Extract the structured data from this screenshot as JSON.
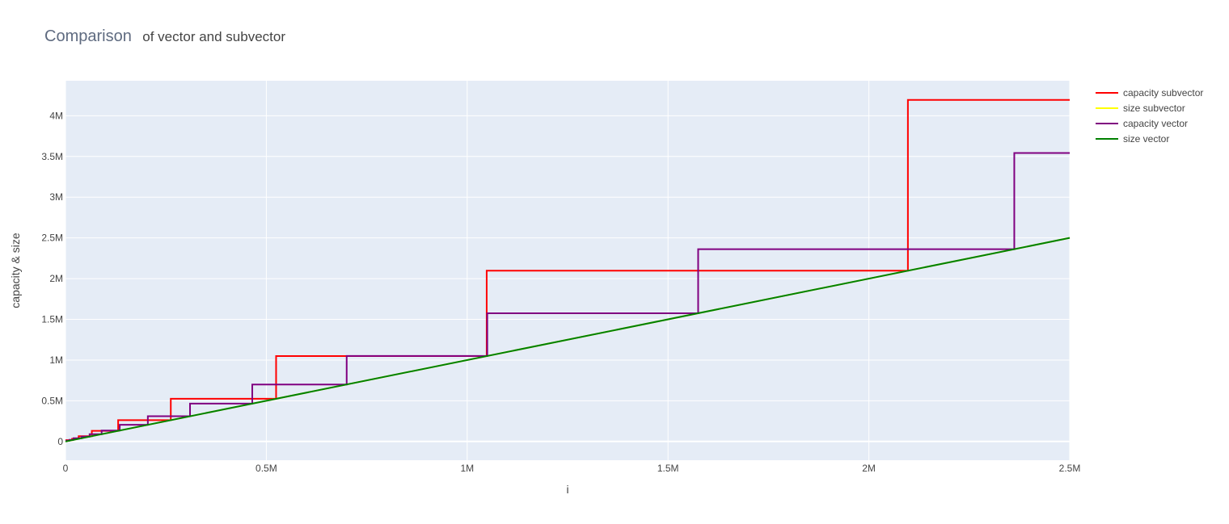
{
  "chart_data": {
    "type": "line",
    "title": "Comparison",
    "subtitle": "of vector and subvector",
    "xlabel": "i",
    "ylabel": "capacity & size",
    "xlim": [
      0,
      2500000
    ],
    "ylim": [
      -230000,
      4430000
    ],
    "x_ticks": [
      {
        "value": 0,
        "label": "0"
      },
      {
        "value": 500000,
        "label": "0.5M"
      },
      {
        "value": 1000000,
        "label": "1M"
      },
      {
        "value": 1500000,
        "label": "1.5M"
      },
      {
        "value": 2000000,
        "label": "2M"
      },
      {
        "value": 2500000,
        "label": "2.5M"
      }
    ],
    "y_ticks": [
      {
        "value": 0,
        "label": "0"
      },
      {
        "value": 500000,
        "label": "0.5M"
      },
      {
        "value": 1000000,
        "label": "1M"
      },
      {
        "value": 1500000,
        "label": "1.5M"
      },
      {
        "value": 2000000,
        "label": "2M"
      },
      {
        "value": 2500000,
        "label": "2.5M"
      },
      {
        "value": 3000000,
        "label": "3M"
      },
      {
        "value": 3500000,
        "label": "3.5M"
      },
      {
        "value": 4000000,
        "label": "4M"
      }
    ],
    "grid": true,
    "legend_position": "top-right",
    "series": [
      {
        "name": "capacity subvector",
        "color": "#ff0000",
        "x": [
          0,
          16384,
          16384,
          32768,
          32768,
          65536,
          65536,
          131072,
          131072,
          262144,
          262144,
          524288,
          524288,
          1048576,
          1048576,
          2097152,
          2097152,
          2500000
        ],
        "y": [
          16384,
          16384,
          32768,
          32768,
          65536,
          65536,
          131072,
          131072,
          262144,
          262144,
          524288,
          524288,
          1048576,
          1048576,
          2097152,
          2097152,
          4194304,
          4194304
        ]
      },
      {
        "name": "size subvector",
        "color": "#ffff00",
        "x": [
          0,
          2500000
        ],
        "y": [
          0,
          2500000
        ]
      },
      {
        "name": "capacity vector",
        "color": "#800080",
        "x": [
          0,
          10000,
          10000,
          20000,
          20000,
          40000,
          40000,
          60000,
          60000,
          90000,
          90000,
          135000,
          135000,
          205000,
          205000,
          310000,
          310000,
          465000,
          465000,
          700000,
          700000,
          1050000,
          1050000,
          1575000,
          1575000,
          2362000,
          2362000,
          2500000
        ],
        "y": [
          10000,
          10000,
          20000,
          20000,
          40000,
          40000,
          60000,
          60000,
          90000,
          90000,
          135000,
          135000,
          205000,
          205000,
          310000,
          310000,
          465000,
          465000,
          700000,
          700000,
          1050000,
          1050000,
          1575000,
          1575000,
          2362000,
          2362000,
          3543000,
          3543000
        ]
      },
      {
        "name": "size vector",
        "color": "#008000",
        "x": [
          0,
          2500000
        ],
        "y": [
          0,
          2500000
        ]
      }
    ]
  }
}
